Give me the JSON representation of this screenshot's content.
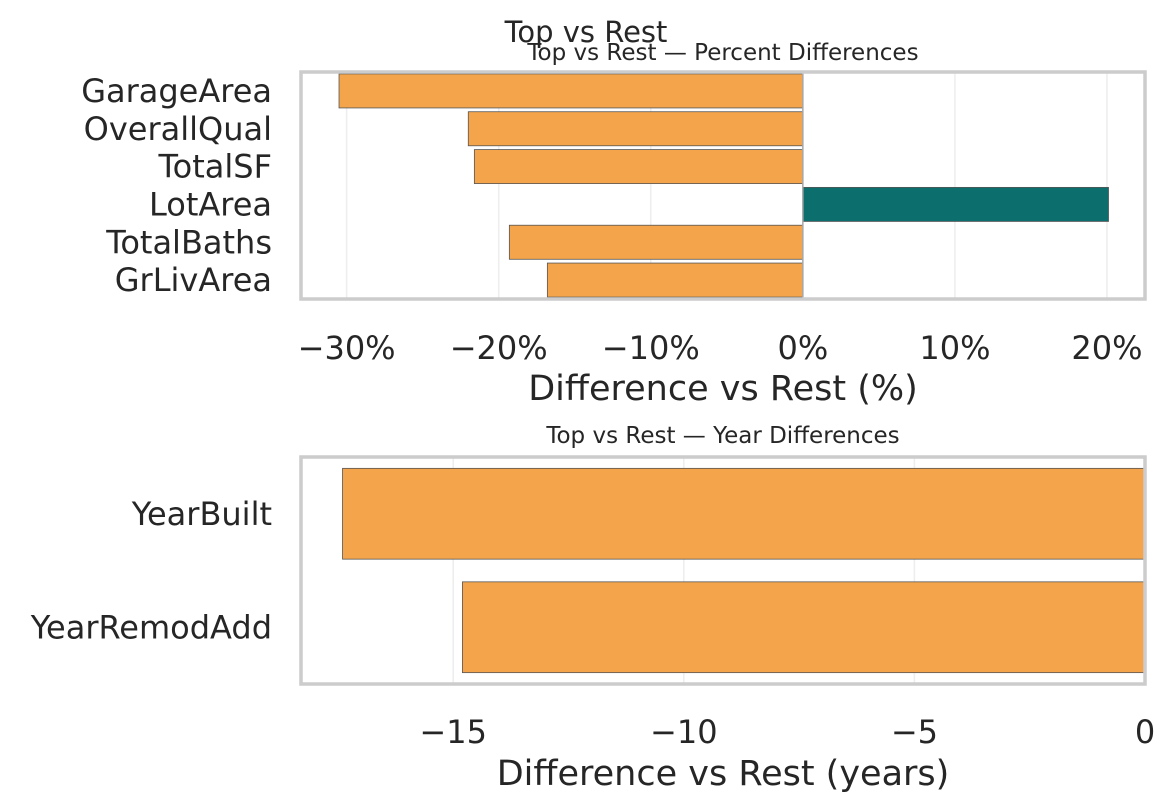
{
  "figure": {
    "suptitle": "Top vs Rest"
  },
  "colors": {
    "negative": "#f4a54b",
    "positive": "#0d6e6e"
  },
  "chart_data": [
    {
      "type": "bar",
      "orientation": "horizontal",
      "title": "Top vs Rest — Percent Differences",
      "xlabel": "Difference vs Rest (%)",
      "ylabel": "",
      "categories": [
        "GarageArea",
        "OverallQual",
        "TotalSF",
        "LotArea",
        "TotalBaths",
        "GrLivArea"
      ],
      "values": [
        -30.5,
        -22.0,
        -21.6,
        20.1,
        -19.3,
        -16.8
      ],
      "xlim": [
        -33,
        22.5
      ],
      "xticks": [
        -30,
        -20,
        -10,
        0,
        10,
        20
      ],
      "xtick_labels": [
        "−30%",
        "−20%",
        "−10%",
        "0%",
        "10%",
        "20%"
      ],
      "grid": "vertical",
      "zero_line": true
    },
    {
      "type": "bar",
      "orientation": "horizontal",
      "title": "Top vs Rest — Year Differences",
      "xlabel": "Difference vs Rest (years)",
      "ylabel": "",
      "categories": [
        "YearBuilt",
        "YearRemodAdd"
      ],
      "values": [
        -17.4,
        -14.8
      ],
      "xlim": [
        -18.3,
        0
      ],
      "xticks": [
        -15,
        -10,
        -5,
        0
      ],
      "xtick_labels": [
        "−15",
        "−10",
        "−5",
        "0"
      ],
      "grid": "vertical",
      "zero_line": false
    }
  ]
}
